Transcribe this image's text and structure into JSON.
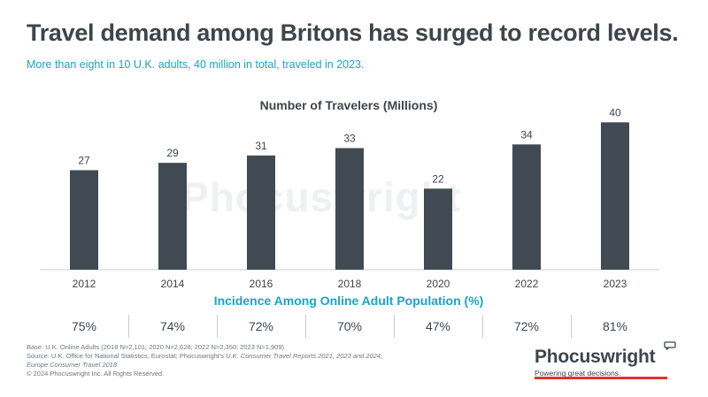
{
  "header": {
    "title": "Travel demand among Britons has surged to record levels.",
    "subtitle": "More than eight in 10 U.K. adults, 40 million in total, traveled in 2023."
  },
  "watermark": "Phocuswright",
  "chart_data": {
    "type": "bar",
    "title": "Number of Travelers (Millions)",
    "categories": [
      "2012",
      "2014",
      "2016",
      "2018",
      "2020",
      "2022",
      "2023"
    ],
    "values": [
      27,
      29,
      31,
      33,
      22,
      34,
      40
    ],
    "xlabel": "",
    "ylabel": "",
    "ylim": [
      0,
      42
    ],
    "grid": false,
    "legend": "none",
    "bar_color": "#414a52"
  },
  "incidence": {
    "title": "Incidence Among Online Adult Population (%)",
    "values": [
      "75%",
      "74%",
      "72%",
      "70%",
      "47%",
      "72%",
      "81%"
    ]
  },
  "footer": {
    "base": "Base: U.K. Online Adults (2018 N=2,101; 2020 N=2,628; 2022 N=2,350; 2023 N=1,909)",
    "source_prefix": "Source: U.K. Office for National Statistics; Eurostat; Phocuswright's ",
    "source_italic": "U.K. Consumer Travel Reports 2021, 2023 and 2024;",
    "source_line2": "Europe Consumer Travel 2018",
    "copyright": "© 2024 Phocuswright Inc. All Rights Reserved."
  },
  "logo": {
    "name": "Phocuswright",
    "tagline": "Powering great decisions."
  },
  "colors": {
    "accent": "#1ba3c6",
    "bar": "#414a52",
    "brand_red": "#e5322d"
  }
}
